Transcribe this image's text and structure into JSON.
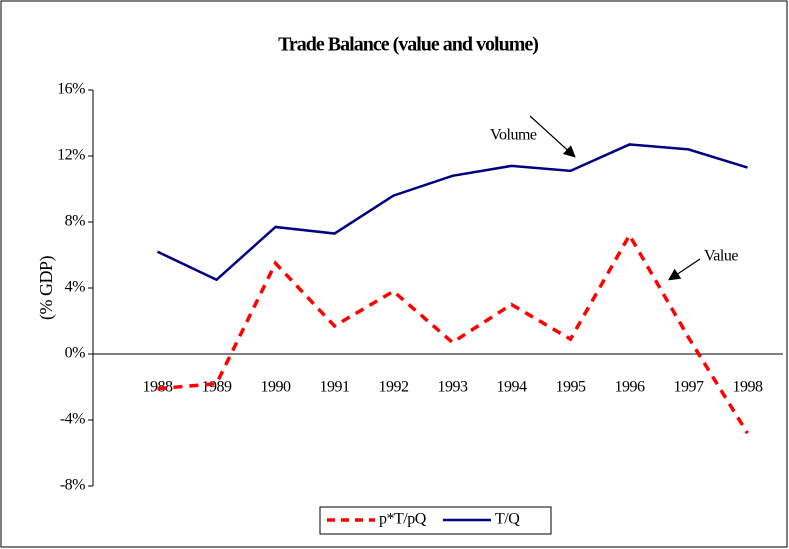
{
  "chart_data": {
    "type": "line",
    "title": "Trade Balance (value and volume)",
    "ylabel": "(% GDP)",
    "categories": [
      "1988",
      "1989",
      "1990",
      "1991",
      "1992",
      "1993",
      "1994",
      "1995",
      "1996",
      "1997",
      "1998"
    ],
    "series": [
      {
        "name": "p*T/pQ",
        "color": "#ff0000",
        "dashed": true,
        "values": [
          -2.1,
          -1.8,
          5.5,
          1.7,
          3.8,
          0.7,
          3.0,
          0.9,
          7.2,
          1.0,
          -4.8
        ]
      },
      {
        "name": "T/Q",
        "color": "#000080",
        "dashed": false,
        "values": [
          6.2,
          4.5,
          7.7,
          7.3,
          9.6,
          10.8,
          11.4,
          11.1,
          12.7,
          12.4,
          11.3
        ]
      }
    ],
    "ylim": [
      -8,
      16
    ],
    "yticks": [
      {
        "value": -8,
        "label": "-8%"
      },
      {
        "value": -4,
        "label": "-4%"
      },
      {
        "value": 0,
        "label": "0%"
      },
      {
        "value": 4,
        "label": "4%"
      },
      {
        "value": 8,
        "label": "8%"
      },
      {
        "value": 12,
        "label": "12%"
      },
      {
        "value": 16,
        "label": "16%"
      }
    ],
    "annotations": [
      "Volume",
      "Value"
    ],
    "legend": "bottom"
  }
}
